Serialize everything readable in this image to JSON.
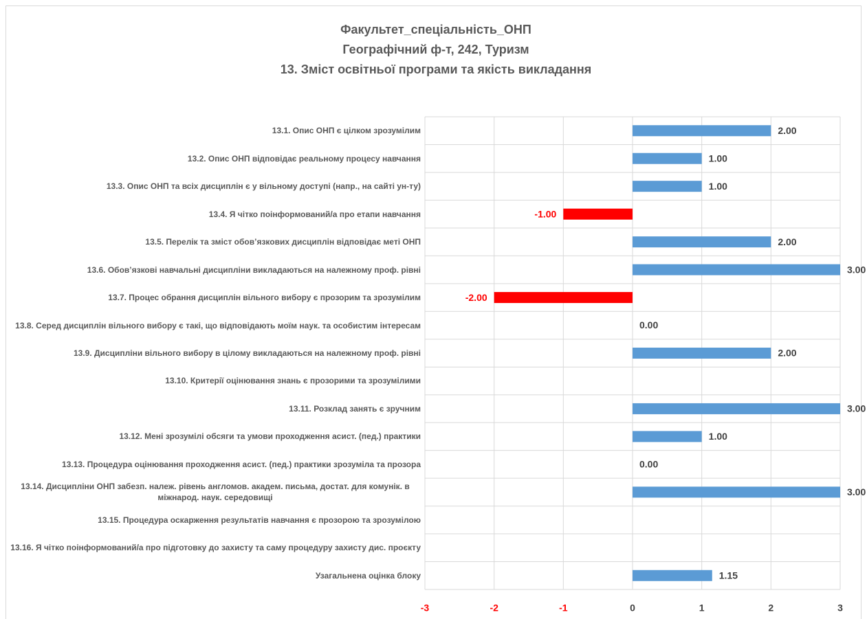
{
  "chart_data": {
    "type": "barh",
    "title": [
      "Факультет_спеціальність_ОНП",
      "Географічний ф-т, 242, Туризм",
      "13. Зміст освітньої програми та якість викладання"
    ],
    "categories": [
      "13.1. Опис ОНП є цілком зрозумілим",
      "13.2. Опис ОНП відповідає реальному процесу навчання",
      "13.3. Опис ОНП та всіх дисциплін є у вільному доступі (напр., на сайті ун-ту)",
      "13.4. Я чітко поінформований/а про етапи навчання",
      "13.5. Перелік та зміст обов’язкових дисциплін відповідає меті ОНП",
      "13.6. Обов’язкові навчальні дисципліни викладаються на належному проф. рівні",
      "13.7. Процес обрання дисциплін вільного вибору є прозорим та зрозумілим",
      "13.8. Серед дисциплін вільного вибору є такі, що відповідають моїм наук. та особистим інтересам",
      "13.9. Дисципліни вільного вибору в цілому викладаються на належному проф. рівні",
      "13.10. Критерії оцінювання знань є прозорими та зрозумілими",
      "13.11. Розклад занять є зручним",
      "13.12. Мені зрозумілі обсяги та умови проходження асист. (пед.) практики",
      "13.13. Процедура оцінювання проходження асист. (пед.) практики зрозуміла та прозора",
      "13.14. Дисципліни ОНП забезп. належ. рівень англомов. академ. письма, достат. для комунік. в міжнарод. наук. середовищі",
      "13.15. Процедура оскарження результатів навчання є прозорою та зрозумілою",
      "13.16. Я чітко поінформований/а про підготовку до захисту та саму процедуру захисту дис. проєкту",
      "Узагальнена оцінка блоку"
    ],
    "values": [
      2,
      1,
      1,
      -1,
      2,
      3,
      -2,
      0,
      2,
      null,
      3,
      1,
      0,
      3,
      null,
      null,
      1.15
    ],
    "value_labels": [
      "2.00",
      "1.00",
      "1.00",
      "-1.00",
      "2.00",
      "3.00",
      "-2.00",
      "0.00",
      "2.00",
      null,
      "3.00",
      "1.00",
      "0.00",
      "3.00",
      null,
      null,
      "1.15"
    ],
    "color": "#5b9bd5",
    "negative_color": "#ff0000",
    "xlim": [
      -3,
      3
    ],
    "xticks": [
      -3,
      -2,
      -1,
      0,
      1,
      2,
      3
    ],
    "grid": true
  }
}
